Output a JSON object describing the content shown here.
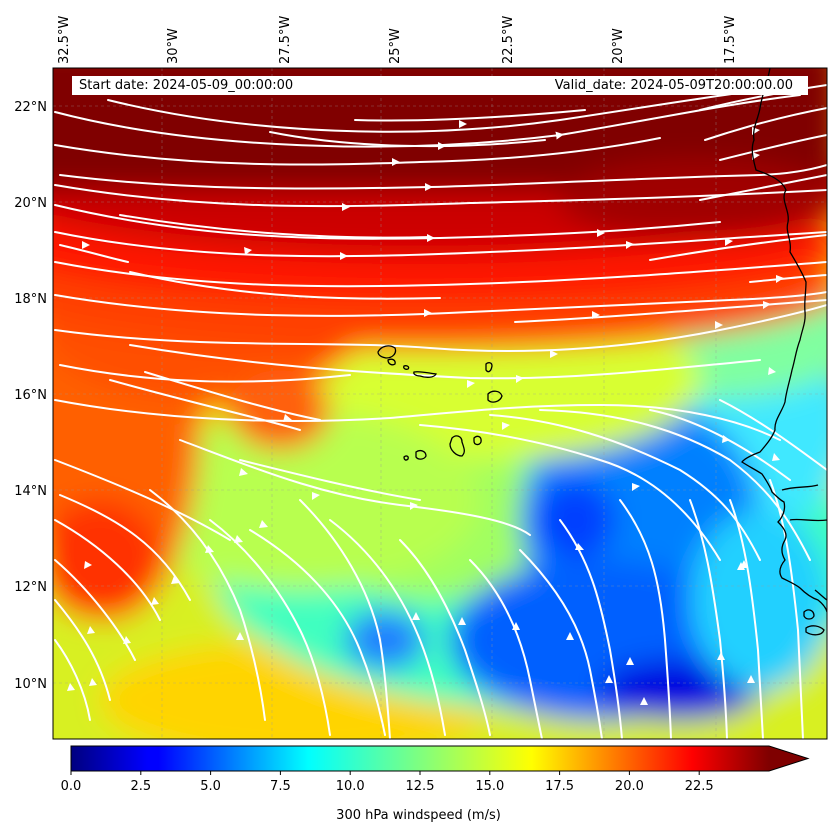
{
  "header": {
    "start_label": "Start date: 2024-05-09_00:00:00",
    "valid_label": "Valid_date: 2024-05-09T20:00:00.00"
  },
  "axes": {
    "lon_ticks": [
      "32.5°W",
      "30°W",
      "27.5°W",
      "25°W",
      "22.5°W",
      "20°W",
      "17.5°W"
    ],
    "lon_values": [
      -32.5,
      -30,
      -27.5,
      -25,
      -22.5,
      -20,
      -17.5
    ],
    "lat_ticks": [
      "22°N",
      "20°N",
      "18°N",
      "16°N",
      "14°N",
      "12°N",
      "10°N"
    ],
    "lat_values": [
      22,
      20,
      18,
      16,
      14,
      12,
      10
    ],
    "lon_range": [
      -32.5,
      -15.0
    ],
    "lat_range": [
      8.9,
      22.8
    ]
  },
  "colorbar": {
    "label": "300 hPa windspeed (m/s)",
    "tick_labels": [
      "0.0",
      "2.5",
      "5.0",
      "7.5",
      "10.0",
      "12.5",
      "15.0",
      "17.5",
      "20.0",
      "22.5"
    ],
    "tick_values": [
      0,
      2.5,
      5,
      7.5,
      10,
      12.5,
      15,
      17.5,
      20,
      22.5
    ],
    "range": [
      0,
      25
    ],
    "extend": "max",
    "colormap": "jet"
  },
  "colors": {
    "streamline": "#ffffff",
    "coastline": "#000000",
    "gridline": "#999999"
  },
  "field": {
    "variable": "300 hPa windspeed",
    "units": "m/s"
  }
}
